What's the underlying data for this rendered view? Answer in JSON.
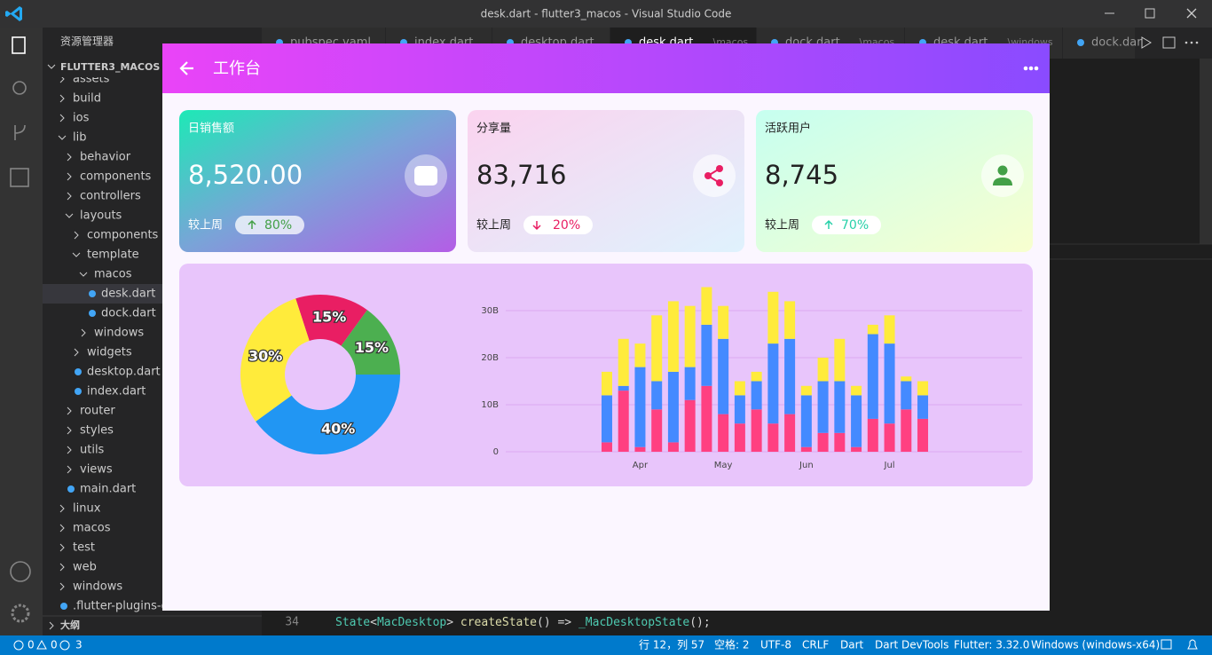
{
  "window": {
    "title": "desk.dart - flutter3_macos - Visual Studio Code"
  },
  "explorer": {
    "title": "资源管理器",
    "project": "FLUTTER3_MACOS",
    "items": [
      "assets",
      "build",
      "ios",
      "lib",
      "behavior",
      "components",
      "controllers",
      "layouts",
      "components",
      "template",
      "macos",
      "desk.dart",
      "dock.dart",
      "windows",
      "widgets",
      "desktop.dart",
      "index.dart",
      "router",
      "styles",
      "utils",
      "views",
      "main.dart",
      "linux",
      "macos",
      "test",
      "web",
      "windows",
      ".flutter-plugins-de"
    ],
    "outline": "大纲"
  },
  "tabs": [
    {
      "name": "pubspec.yaml"
    },
    {
      "name": "index.dart"
    },
    {
      "name": "desktop.dart"
    },
    {
      "name": "desk.dart",
      "desc": "...\\macos"
    },
    {
      "name": "dock.dart",
      "desc": "...\\macos"
    },
    {
      "name": "desk.dart",
      "desc": "...\\windows"
    },
    {
      "name": "dock.dar"
    }
  ],
  "editor": {
    "line_number": "34",
    "code": [
      "State",
      "<",
      "MacDesktop",
      ">",
      " createState",
      "()",
      " =>",
      " _MacDesktopState",
      "();"
    ]
  },
  "status": {
    "errors": "0",
    "warnings": "0",
    "infos": "3",
    "items": [
      "行 12，列 57",
      "空格: 2",
      "UTF-8",
      "CRLF",
      "Dart",
      "Dart DevTools",
      "Flutter: 3.32.0",
      "Windows (windows-x64)"
    ]
  },
  "app": {
    "title": "工作台",
    "cards": [
      {
        "title": "日销售额",
        "value": "8,520.00",
        "compare": "较上周",
        "change": "80%"
      },
      {
        "title": "分享量",
        "value": "83,716",
        "compare": "较上周",
        "change": "20%"
      },
      {
        "title": "活跃用户",
        "value": "8,745",
        "compare": "较上周",
        "change": "70%"
      }
    ]
  },
  "chart_data": [
    {
      "type": "pie",
      "values": [
        15,
        15,
        40,
        30
      ],
      "value_labels": [
        "15%",
        "15%",
        "40%",
        "30%"
      ],
      "colors": [
        "#e91e63",
        "#4caf50",
        "#2196f3",
        "#ffeb3b"
      ]
    },
    {
      "type": "bar",
      "stacked": true,
      "categories": [
        null,
        null,
        "Apr",
        null,
        null,
        null,
        null,
        "May",
        null,
        null,
        null,
        null,
        "Jun",
        null,
        null,
        null,
        null,
        "Jul",
        null,
        null
      ],
      "series": [
        {
          "color": "#ff4081",
          "values": [
            2,
            13,
            1,
            9,
            2,
            11,
            14,
            8,
            6,
            9,
            6,
            8,
            1,
            4,
            4,
            1,
            7,
            6,
            9,
            7
          ]
        },
        {
          "color": "#448aff",
          "values": [
            10,
            1,
            17,
            6,
            15,
            7,
            13,
            16,
            6,
            6,
            17,
            16,
            11,
            11,
            11,
            11,
            18,
            17,
            6,
            5
          ]
        },
        {
          "color": "#ffeb3b",
          "values": [
            5,
            10,
            5,
            14,
            15,
            13,
            8,
            7,
            3,
            2,
            11,
            8,
            2,
            5,
            9,
            2,
            2,
            6,
            1,
            3
          ]
        }
      ],
      "ylim": [
        0,
        36
      ],
      "yticks": [
        0,
        {
          "value": 10,
          "label": "10B"
        },
        {
          "value": 20,
          "label": "20B"
        },
        {
          "value": 30,
          "label": "30B"
        }
      ],
      "grid": true
    }
  ]
}
